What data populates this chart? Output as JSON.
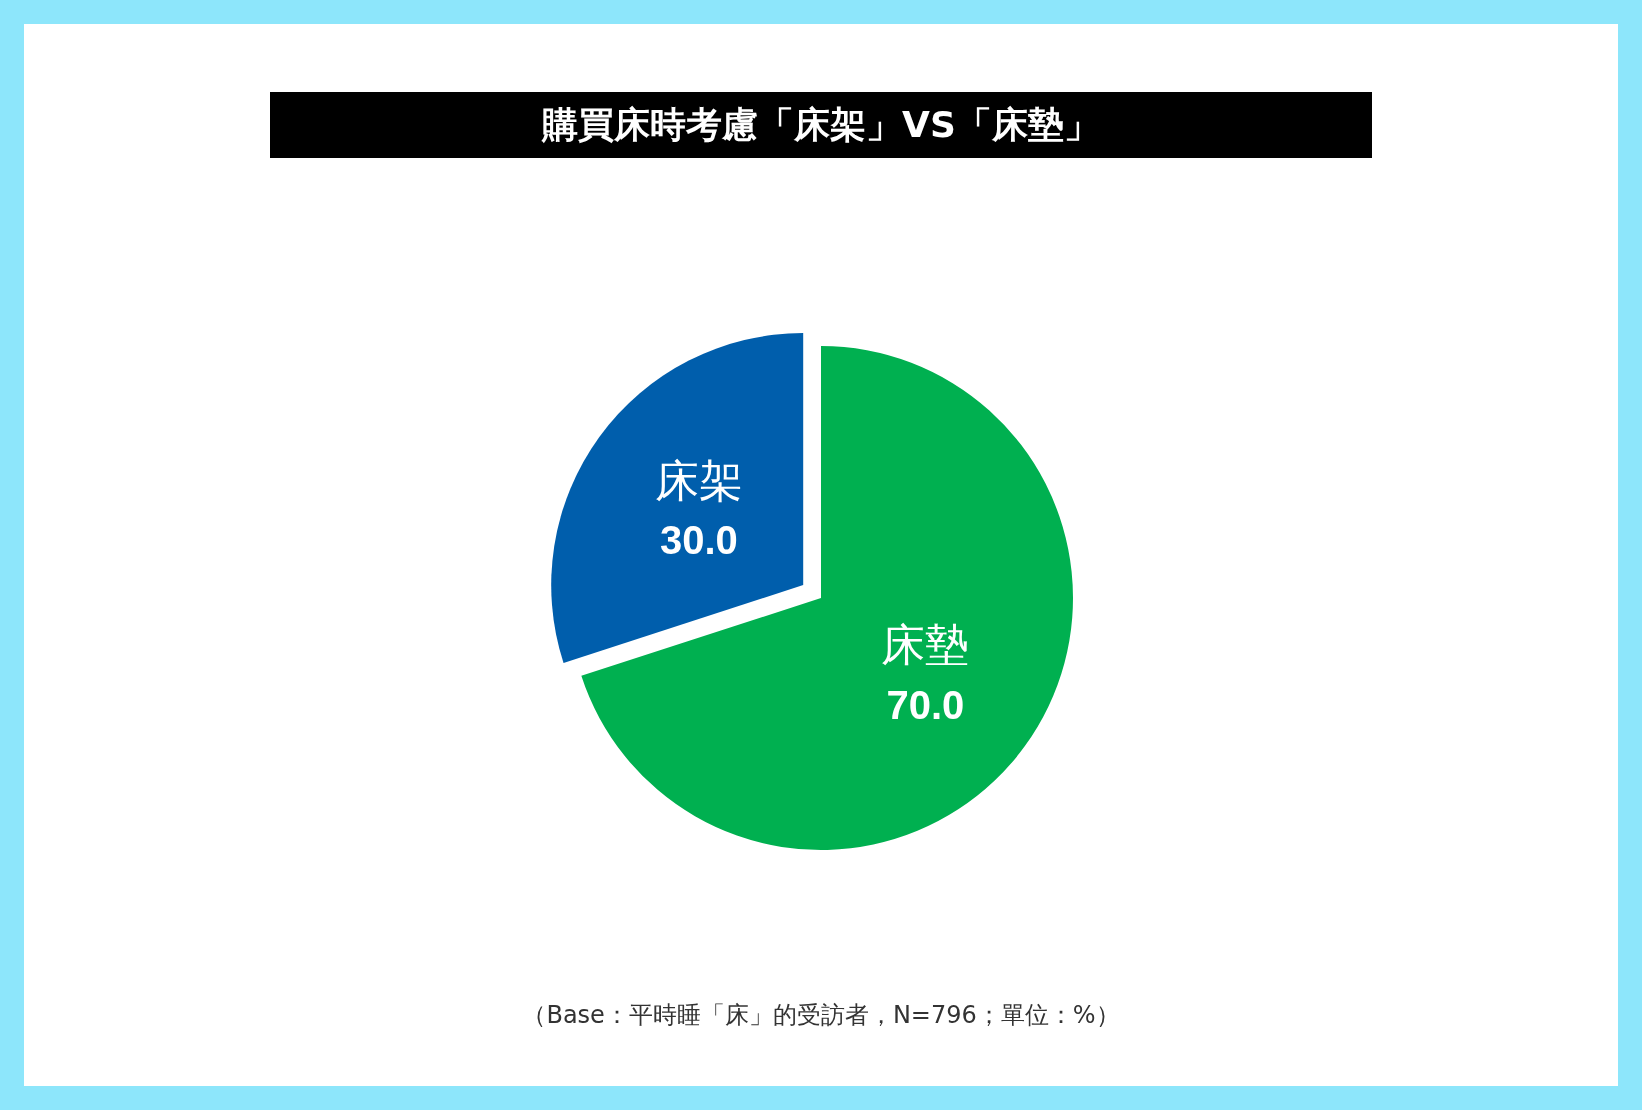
{
  "chart_data": {
    "type": "pie",
    "title": "購買床時考慮「床架」VS「床墊」",
    "categories": [
      "床架",
      "床墊"
    ],
    "values": [
      30,
      70
    ],
    "value_labels": [
      "30.0",
      "70.0"
    ],
    "colors": [
      "#005eac",
      "#00b050"
    ],
    "legend": false,
    "annotations": [
      "（Base：平時睡「床」的受訪者，N=796；單位：%）"
    ]
  }
}
